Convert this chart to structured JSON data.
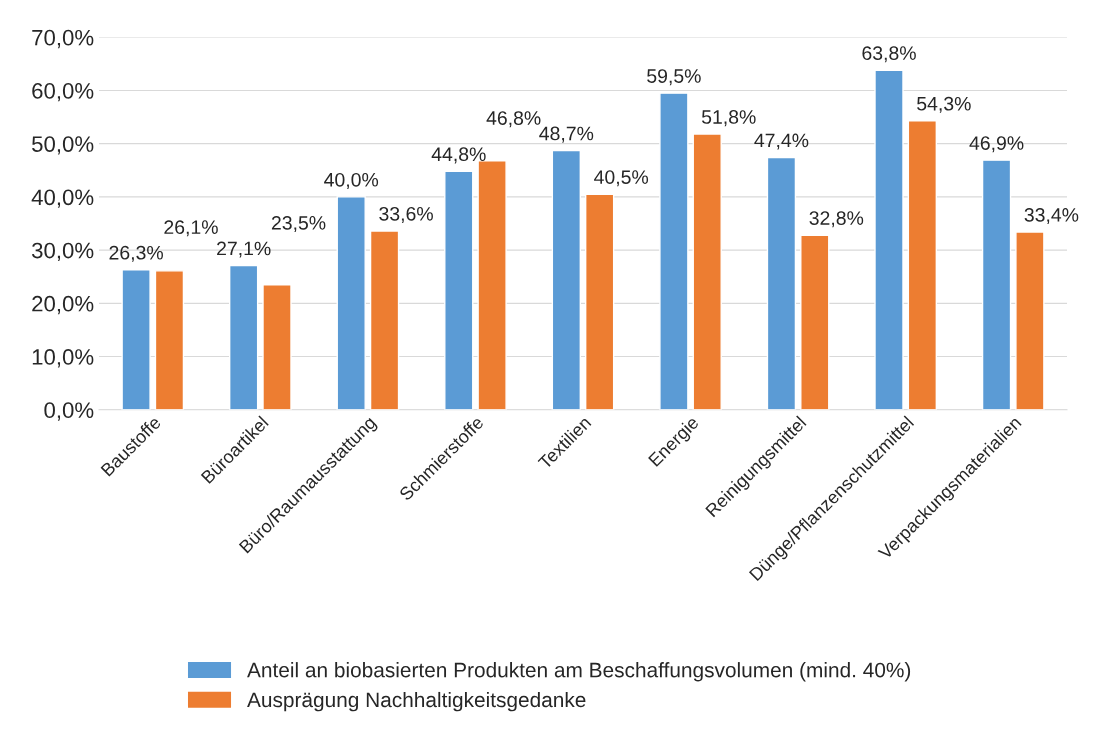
{
  "chart_data": {
    "type": "bar",
    "categories": [
      "Baustoffe",
      "Büroartikel",
      "Büro/Raumausstattung",
      "Schmierstoffe",
      "Textilien",
      "Energie",
      "Reinigungsmittel",
      "Dünge/Pflanzenschutzmittel",
      "Verpackungsmaterialien"
    ],
    "series": [
      {
        "name": "Anteil an biobasierten Produkten am Beschaffungsvolumen (mind. 40%)",
        "color": "#5b9bd5",
        "values": [
          26.3,
          27.1,
          40.0,
          44.8,
          48.7,
          59.5,
          47.4,
          63.8,
          46.9
        ],
        "value_labels": [
          "26,3%",
          "27,1%",
          "40,0%",
          "44,8%",
          "48,7%",
          "59,5%",
          "47,4%",
          "63,8%",
          "46,9%"
        ]
      },
      {
        "name": "Ausprägung Nachhaltigkeitsgedanke",
        "color": "#ed7d31",
        "values": [
          26.1,
          23.5,
          33.6,
          46.8,
          40.5,
          51.8,
          32.8,
          54.3,
          33.4
        ],
        "value_labels": [
          "26,1%",
          "23,5%",
          "33,6%",
          "46,8%",
          "40,5%",
          "51,8%",
          "32,8%",
          "54,3%",
          "33,4%"
        ]
      }
    ],
    "ylim": [
      0,
      70
    ],
    "yticks": [
      {
        "value": 0,
        "label": "0,0%"
      },
      {
        "value": 10,
        "label": "10,0%"
      },
      {
        "value": 20,
        "label": "20,0%"
      },
      {
        "value": 30,
        "label": "30,0%"
      },
      {
        "value": 40,
        "label": "40,0%"
      },
      {
        "value": 50,
        "label": "50,0%"
      },
      {
        "value": 60,
        "label": "60,0%"
      },
      {
        "value": 70,
        "label": "70,0%"
      }
    ],
    "grid": "y",
    "legend": "bottom"
  }
}
